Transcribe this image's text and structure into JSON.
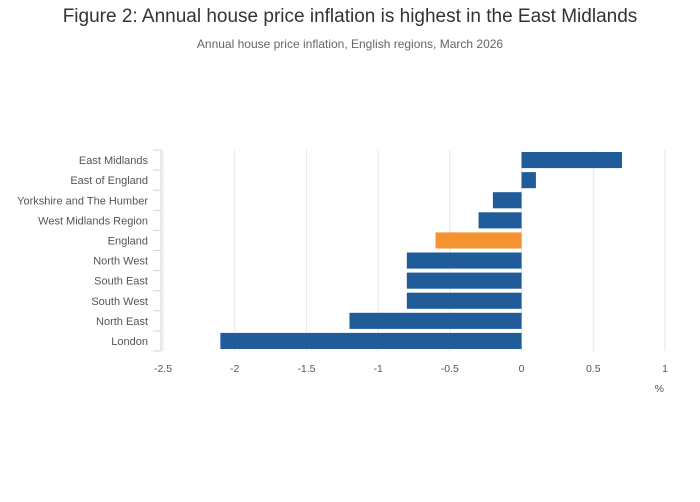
{
  "title": "Figure 2: Annual house price inflation is highest in the East Midlands",
  "subtitle": "Annual house price inflation, English regions, March 2026",
  "colors": {
    "default_bar": "#1f5c99",
    "highlight_bar": "#f39431",
    "grid": "#e6e6e6"
  },
  "chart_data": {
    "type": "bar",
    "orientation": "horizontal",
    "title": "Figure 2: Annual house price inflation is highest in the East Midlands",
    "subtitle": "Annual house price inflation, English regions, March 2026",
    "xlabel": "%",
    "ylabel": "",
    "xlim": [
      -2.5,
      1
    ],
    "xticks": [
      -2.5,
      -2,
      -1.5,
      -1,
      -0.5,
      0,
      0.5,
      1
    ],
    "xtick_labels": [
      "-2.5",
      "-2",
      "-1.5",
      "-1",
      "-0.5",
      "0",
      "0.5",
      "1"
    ],
    "grid": true,
    "categories": [
      "East Midlands",
      "East of England",
      "Yorkshire and The Humber",
      "West Midlands Region",
      "England",
      "North West",
      "South East",
      "South West",
      "North East",
      "London"
    ],
    "values": [
      0.7,
      0.1,
      -0.2,
      -0.3,
      -0.6,
      -0.8,
      -0.8,
      -0.8,
      -1.2,
      -2.1
    ],
    "highlight": "England"
  }
}
